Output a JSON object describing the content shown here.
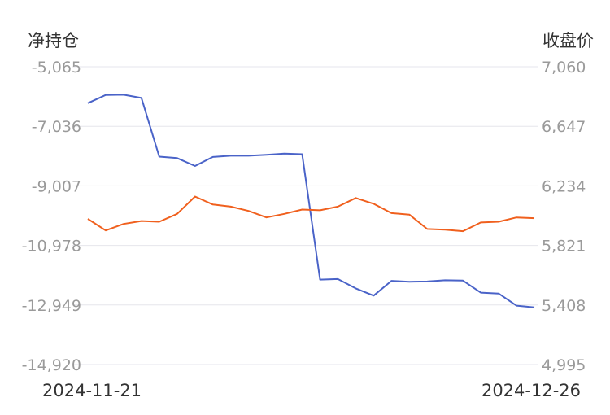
{
  "chart_data": {
    "type": "line",
    "left_axis_title": "净持仓",
    "right_axis_title": "收盘价",
    "left_ticks": [
      "-5,065",
      "-7,036",
      "-9,007",
      "-10,978",
      "-12,949",
      "-14,920"
    ],
    "right_ticks": [
      "7,060",
      "6,647",
      "6,234",
      "5,821",
      "5,408",
      "4,995"
    ],
    "ylim_left": [
      -14920,
      -5065
    ],
    "ylim_right": [
      4995,
      7060
    ],
    "x_start_label": "2024-11-21",
    "x_end_label": "2024-12-26",
    "grid": true,
    "series": [
      {
        "axis": "left",
        "color": "#4a63c8",
        "values": [
          -6270,
          -6000,
          -5990,
          -6100,
          -8040,
          -8090,
          -8350,
          -8050,
          -8010,
          -8010,
          -7980,
          -7940,
          -7960,
          -12110,
          -12090,
          -12400,
          -12640,
          -12150,
          -12180,
          -12170,
          -12130,
          -12140,
          -12540,
          -12570,
          -12970,
          -13030
        ]
      },
      {
        "axis": "right",
        "color": "#f0601e",
        "values": [
          6005,
          5925,
          5970,
          5990,
          5985,
          6040,
          6160,
          6105,
          6090,
          6060,
          6015,
          6040,
          6070,
          6065,
          6090,
          6150,
          6110,
          6045,
          6035,
          5935,
          5930,
          5920,
          5980,
          5985,
          6015,
          6010
        ]
      }
    ]
  }
}
